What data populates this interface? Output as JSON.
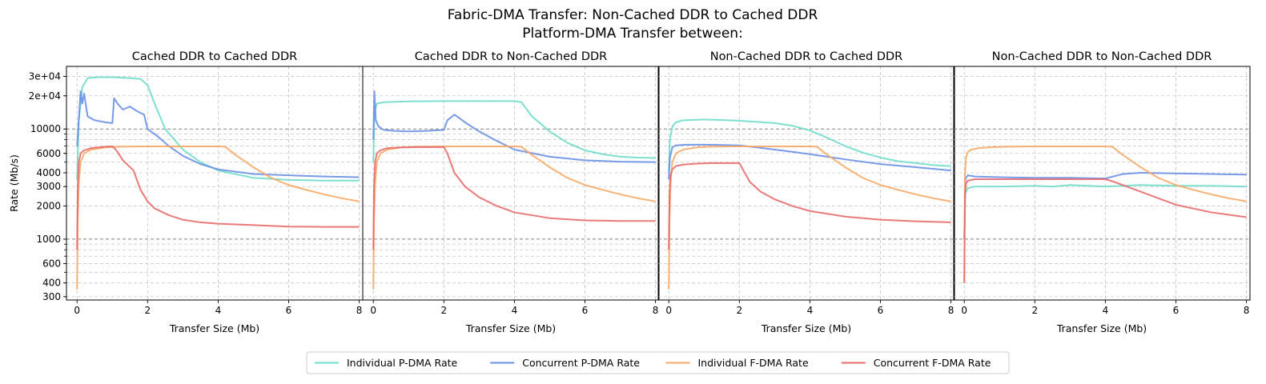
{
  "figure": {
    "title_line1": "Fabric-DMA Transfer: Non-Cached DDR to Cached DDR",
    "title_line2": "Platform-DMA Transfer between:"
  },
  "colors": {
    "individual_pdma": "#6fdccb",
    "concurrent_pdma": "#6a8fe6",
    "individual_fdma": "#f6a866",
    "concurrent_fdma": "#e86a6a",
    "grid": "#c8c8c8",
    "ref_line": "#808080"
  },
  "legend": {
    "placement": "bottom-center",
    "entries": [
      {
        "label": "Individual P-DMA Rate",
        "color": "#6fdccb"
      },
      {
        "label": "Concurrent P-DMA Rate",
        "color": "#6a8fe6"
      },
      {
        "label": "Individual F-DMA Rate",
        "color": "#f6a866"
      },
      {
        "label": "Concurrent F-DMA Rate",
        "color": "#e86a6a"
      }
    ]
  },
  "chart_data": [
    {
      "type": "line",
      "title": "Cached DDR to Cached DDR",
      "xlabel": "Transfer Size (Mb)",
      "ylabel": "Rate (Mb/s)",
      "yscale": "log",
      "xlim": [
        -0.3,
        8.1
      ],
      "ylim": [
        280,
        37000
      ],
      "x_ticks": [
        "0",
        "2",
        "4",
        "6",
        "8"
      ],
      "y_ticks": [
        "300",
        "400",
        "600",
        "1000",
        "2000",
        "3000",
        "4000",
        "6000",
        "10000",
        "2e+04",
        "3e+04"
      ],
      "grid": true,
      "series": [
        {
          "name": "Individual P-DMA Rate",
          "x": [
            0,
            0.05,
            0.15,
            0.3,
            0.6,
            1.0,
            1.5,
            1.8,
            2.0,
            2.2,
            2.5,
            3.0,
            3.5,
            4.0,
            5.0,
            6.0,
            7.0,
            8.0
          ],
          "y": [
            3500,
            12000,
            24000,
            29000,
            29500,
            29500,
            29000,
            28500,
            25000,
            17000,
            10000,
            6500,
            5000,
            4200,
            3600,
            3450,
            3400,
            3400
          ]
        },
        {
          "name": "Concurrent P-DMA Rate",
          "x": [
            0,
            0.05,
            0.1,
            0.15,
            0.2,
            0.3,
            0.5,
            0.8,
            1.0,
            1.05,
            1.15,
            1.3,
            1.5,
            1.7,
            1.9,
            2.0,
            2.3,
            2.6,
            3.0,
            3.5,
            4.0,
            5.0,
            6.0,
            7.0,
            8.0
          ],
          "y": [
            7000,
            12000,
            22000,
            17000,
            21000,
            13000,
            12000,
            11500,
            11300,
            19000,
            17000,
            15000,
            16000,
            14500,
            13500,
            10000,
            8500,
            7000,
            5700,
            4800,
            4300,
            3900,
            3800,
            3700,
            3650
          ]
        },
        {
          "name": "Individual F-DMA Rate",
          "x": [
            0,
            0.02,
            0.05,
            0.1,
            0.2,
            0.4,
            0.8,
            1.2,
            2.0,
            3.0,
            4.0,
            4.2,
            4.5,
            5.0,
            5.5,
            6.0,
            6.5,
            7.0,
            7.5,
            8.0
          ],
          "y": [
            350,
            1500,
            3200,
            5000,
            6000,
            6500,
            6800,
            6900,
            6950,
            6950,
            6950,
            6900,
            5800,
            4500,
            3600,
            3100,
            2800,
            2550,
            2350,
            2200
          ]
        },
        {
          "name": "Concurrent F-DMA Rate",
          "x": [
            0,
            0.02,
            0.05,
            0.1,
            0.2,
            0.4,
            0.8,
            1.0,
            1.1,
            1.3,
            1.6,
            1.8,
            2.0,
            2.2,
            2.6,
            3.0,
            3.5,
            4.0,
            5.0,
            6.0,
            7.0,
            8.0
          ],
          "y": [
            800,
            3000,
            5000,
            6000,
            6400,
            6700,
            6900,
            6950,
            6500,
            5200,
            4200,
            2800,
            2200,
            1900,
            1650,
            1500,
            1420,
            1380,
            1340,
            1300,
            1290,
            1290
          ]
        }
      ]
    },
    {
      "type": "line",
      "title": "Cached DDR to Non-Cached DDR",
      "xlabel": "Transfer Size (Mb)",
      "yscale": "log",
      "xlim": [
        -0.3,
        8.1
      ],
      "ylim": [
        280,
        37000
      ],
      "x_ticks": [
        "0",
        "2",
        "4",
        "6",
        "8"
      ],
      "grid": true,
      "series": [
        {
          "name": "Individual P-DMA Rate",
          "x": [
            0,
            0.03,
            0.1,
            0.3,
            1.0,
            2.0,
            3.0,
            4.0,
            4.2,
            4.5,
            5.0,
            5.5,
            6.0,
            6.5,
            7.0,
            7.5,
            8.0
          ],
          "y": [
            5000,
            14000,
            17000,
            17500,
            17800,
            17900,
            17900,
            17900,
            17500,
            13000,
            9500,
            7500,
            6400,
            5900,
            5600,
            5500,
            5450
          ]
        },
        {
          "name": "Concurrent P-DMA Rate",
          "x": [
            0,
            0.03,
            0.07,
            0.15,
            0.3,
            0.6,
            1.0,
            1.5,
            2.0,
            2.1,
            2.3,
            2.6,
            3.0,
            3.5,
            4.0,
            5.0,
            6.0,
            7.0,
            8.0
          ],
          "y": [
            8000,
            22000,
            12000,
            10500,
            9800,
            9600,
            9500,
            9600,
            9800,
            12000,
            13500,
            11500,
            9500,
            7800,
            6500,
            5600,
            5200,
            5050,
            5000
          ]
        },
        {
          "name": "Individual F-DMA Rate",
          "x": [
            0,
            0.02,
            0.05,
            0.1,
            0.2,
            0.4,
            0.8,
            1.2,
            2.0,
            3.0,
            4.0,
            4.2,
            4.5,
            5.0,
            5.5,
            6.0,
            6.5,
            7.0,
            7.5,
            8.0
          ],
          "y": [
            350,
            1500,
            3200,
            5000,
            6000,
            6500,
            6800,
            6900,
            6950,
            6950,
            6950,
            6900,
            5800,
            4500,
            3600,
            3100,
            2800,
            2550,
            2350,
            2200
          ]
        },
        {
          "name": "Concurrent F-DMA Rate",
          "x": [
            0,
            0.02,
            0.05,
            0.1,
            0.2,
            0.4,
            0.8,
            1.2,
            1.6,
            2.0,
            2.1,
            2.3,
            2.6,
            3.0,
            3.5,
            4.0,
            5.0,
            6.0,
            7.0,
            8.0
          ],
          "y": [
            800,
            3000,
            5000,
            6000,
            6400,
            6700,
            6800,
            6850,
            6850,
            6850,
            6000,
            4000,
            3000,
            2400,
            2000,
            1750,
            1550,
            1480,
            1460,
            1460
          ]
        }
      ]
    },
    {
      "type": "line",
      "title": "Non-Cached DDR to Cached DDR",
      "xlabel": "Transfer Size (Mb)",
      "yscale": "log",
      "xlim": [
        -0.3,
        8.1
      ],
      "ylim": [
        280,
        37000
      ],
      "x_ticks": [
        "0",
        "2",
        "4",
        "6",
        "8"
      ],
      "grid": true,
      "series": [
        {
          "name": "Individual P-DMA Rate",
          "x": [
            0,
            0.03,
            0.1,
            0.2,
            0.4,
            1.0,
            2.0,
            3.0,
            3.5,
            4.0,
            4.5,
            5.0,
            5.5,
            6.0,
            6.5,
            7.0,
            7.5,
            8.0
          ],
          "y": [
            4000,
            8000,
            10500,
            11500,
            12000,
            12200,
            11900,
            11300,
            10700,
            9700,
            8300,
            7000,
            6100,
            5500,
            5100,
            4900,
            4700,
            4600
          ]
        },
        {
          "name": "Concurrent P-DMA Rate",
          "x": [
            0,
            0.03,
            0.1,
            0.2,
            0.5,
            1.0,
            1.5,
            2.0,
            2.5,
            3.0,
            3.5,
            4.0,
            5.0,
            6.0,
            7.0,
            8.0
          ],
          "y": [
            3500,
            5500,
            6800,
            7100,
            7200,
            7200,
            7150,
            7100,
            6800,
            6500,
            6200,
            5900,
            5300,
            4800,
            4500,
            4200
          ]
        },
        {
          "name": "Individual F-DMA Rate",
          "x": [
            0,
            0.02,
            0.05,
            0.1,
            0.2,
            0.4,
            0.8,
            1.2,
            2.0,
            3.0,
            4.0,
            4.2,
            4.5,
            5.0,
            5.5,
            6.0,
            6.5,
            7.0,
            7.5,
            8.0
          ],
          "y": [
            350,
            1500,
            3200,
            5000,
            6000,
            6500,
            6800,
            6900,
            6950,
            6950,
            6950,
            6900,
            5800,
            4500,
            3600,
            3100,
            2800,
            2550,
            2350,
            2200
          ]
        },
        {
          "name": "Concurrent F-DMA Rate",
          "x": [
            0,
            0.02,
            0.05,
            0.1,
            0.2,
            0.4,
            0.8,
            1.2,
            1.6,
            2.0,
            2.1,
            2.3,
            2.6,
            3.0,
            3.5,
            4.0,
            5.0,
            6.0,
            7.0,
            8.0
          ],
          "y": [
            800,
            2500,
            3800,
            4300,
            4600,
            4750,
            4850,
            4900,
            4900,
            4900,
            4300,
            3300,
            2700,
            2300,
            2000,
            1800,
            1600,
            1500,
            1450,
            1420
          ]
        }
      ]
    },
    {
      "type": "line",
      "title": "Non-Cached DDR to Non-Cached DDR",
      "xlabel": "Transfer Size (Mb)",
      "yscale": "log",
      "xlim": [
        -0.3,
        8.1
      ],
      "ylim": [
        280,
        37000
      ],
      "x_ticks": [
        "0",
        "2",
        "4",
        "6",
        "8"
      ],
      "grid": true,
      "series": [
        {
          "name": "Individual P-DMA Rate",
          "x": [
            0,
            0.03,
            0.1,
            0.3,
            1.0,
            2.0,
            2.5,
            3.0,
            3.5,
            4.0,
            4.5,
            5.0,
            6.0,
            7.0,
            8.0
          ],
          "y": [
            1000,
            2600,
            2900,
            3000,
            3000,
            3050,
            3000,
            3100,
            3050,
            3000,
            3050,
            3100,
            3050,
            3050,
            3000
          ]
        },
        {
          "name": "Concurrent P-DMA Rate",
          "x": [
            0,
            0.03,
            0.1,
            0.3,
            1.0,
            2.0,
            3.0,
            4.0,
            4.5,
            5.0,
            6.0,
            7.0,
            8.0
          ],
          "y": [
            1000,
            3500,
            3800,
            3700,
            3650,
            3600,
            3600,
            3550,
            3900,
            4000,
            3950,
            3900,
            3850
          ]
        },
        {
          "name": "Individual F-DMA Rate",
          "x": [
            0,
            0.02,
            0.05,
            0.1,
            0.2,
            0.4,
            0.8,
            1.2,
            2.0,
            3.0,
            4.0,
            4.2,
            4.5,
            5.0,
            5.5,
            6.0,
            6.5,
            7.0,
            7.5,
            8.0
          ],
          "y": [
            400,
            4000,
            5500,
            6200,
            6500,
            6700,
            6850,
            6900,
            6950,
            6950,
            6950,
            6900,
            5800,
            4500,
            3600,
            3100,
            2800,
            2550,
            2350,
            2200
          ]
        },
        {
          "name": "Concurrent F-DMA Rate",
          "x": [
            0,
            0.02,
            0.05,
            0.1,
            0.3,
            1.0,
            2.0,
            3.0,
            4.0,
            4.2,
            5.0,
            6.0,
            7.0,
            8.0
          ],
          "y": [
            400,
            2600,
            3200,
            3400,
            3500,
            3500,
            3500,
            3500,
            3500,
            3350,
            2700,
            2050,
            1750,
            1580
          ]
        }
      ]
    }
  ]
}
